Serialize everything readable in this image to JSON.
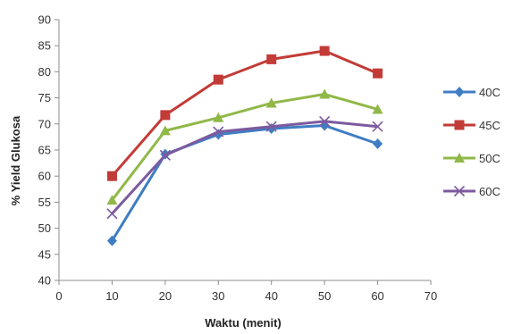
{
  "chart_data": {
    "type": "line",
    "title": "",
    "xlabel": "Waktu (menit)",
    "ylabel": "% Yield Glukosa",
    "xlim": [
      0,
      70
    ],
    "ylim": [
      40,
      90
    ],
    "x_ticks": [
      0,
      10,
      20,
      30,
      40,
      50,
      60,
      70
    ],
    "y_ticks": [
      40,
      45,
      50,
      55,
      60,
      65,
      70,
      75,
      80,
      85,
      90
    ],
    "grid": false,
    "legend_position": "right",
    "x": [
      10,
      20,
      30,
      40,
      50,
      60
    ],
    "series": [
      {
        "name": "40C",
        "color": "#3f7dc4",
        "marker": "diamond",
        "values": [
          47.6,
          64.2,
          68.0,
          69.1,
          69.7,
          66.2
        ]
      },
      {
        "name": "45C",
        "color": "#c23b37",
        "marker": "square",
        "values": [
          60.0,
          71.7,
          78.5,
          82.4,
          84.0,
          79.7
        ]
      },
      {
        "name": "50C",
        "color": "#90b848",
        "marker": "triangle",
        "values": [
          55.4,
          68.7,
          71.2,
          74.0,
          75.7,
          72.8
        ]
      },
      {
        "name": "60C",
        "color": "#7d5a9f",
        "marker": "x",
        "values": [
          52.8,
          64.0,
          68.5,
          69.5,
          70.5,
          69.5
        ]
      }
    ]
  }
}
